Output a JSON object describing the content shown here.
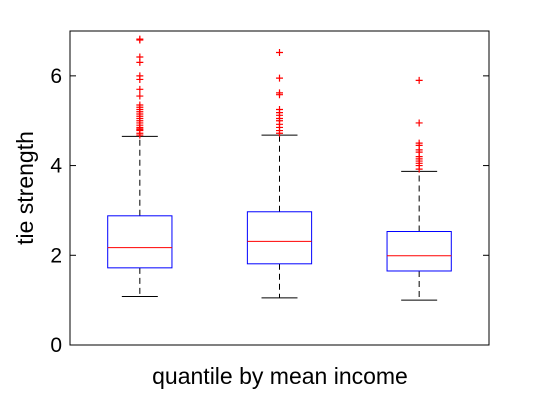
{
  "chart_data": {
    "type": "box",
    "xlabel": "quantile by mean income",
    "ylabel": "tie strength",
    "ylim": [
      0,
      7
    ],
    "yticks": [
      0,
      2,
      4,
      6
    ],
    "grid": false,
    "colors": {
      "box": "#0000ff",
      "median": "#ff0000",
      "whisker": "#000000",
      "outlier": "#ff0000"
    },
    "boxes": [
      {
        "whisker_low": 1.08,
        "q1": 1.72,
        "median": 2.17,
        "q3": 2.88,
        "whisker_high": 4.65,
        "outliers": [
          4.68,
          4.72,
          4.78,
          4.8,
          4.82,
          4.85,
          4.9,
          4.95,
          5.0,
          5.05,
          5.1,
          5.15,
          5.2,
          5.25,
          5.3,
          5.35,
          5.55,
          5.7,
          5.92,
          6.0,
          6.3,
          6.42,
          6.8,
          6.82
        ]
      },
      {
        "whisker_low": 1.05,
        "q1": 1.81,
        "median": 2.31,
        "q3": 2.97,
        "whisker_high": 4.68,
        "outliers": [
          4.72,
          4.78,
          4.85,
          4.92,
          5.0,
          5.05,
          5.12,
          5.18,
          5.25,
          5.58,
          5.62,
          5.95,
          6.52
        ]
      },
      {
        "whisker_low": 1.0,
        "q1": 1.65,
        "median": 1.99,
        "q3": 2.53,
        "whisker_high": 3.87,
        "outliers": [
          3.92,
          4.0,
          4.05,
          4.1,
          4.15,
          4.2,
          4.3,
          4.35,
          4.45,
          4.5,
          4.95,
          5.9
        ]
      }
    ]
  }
}
